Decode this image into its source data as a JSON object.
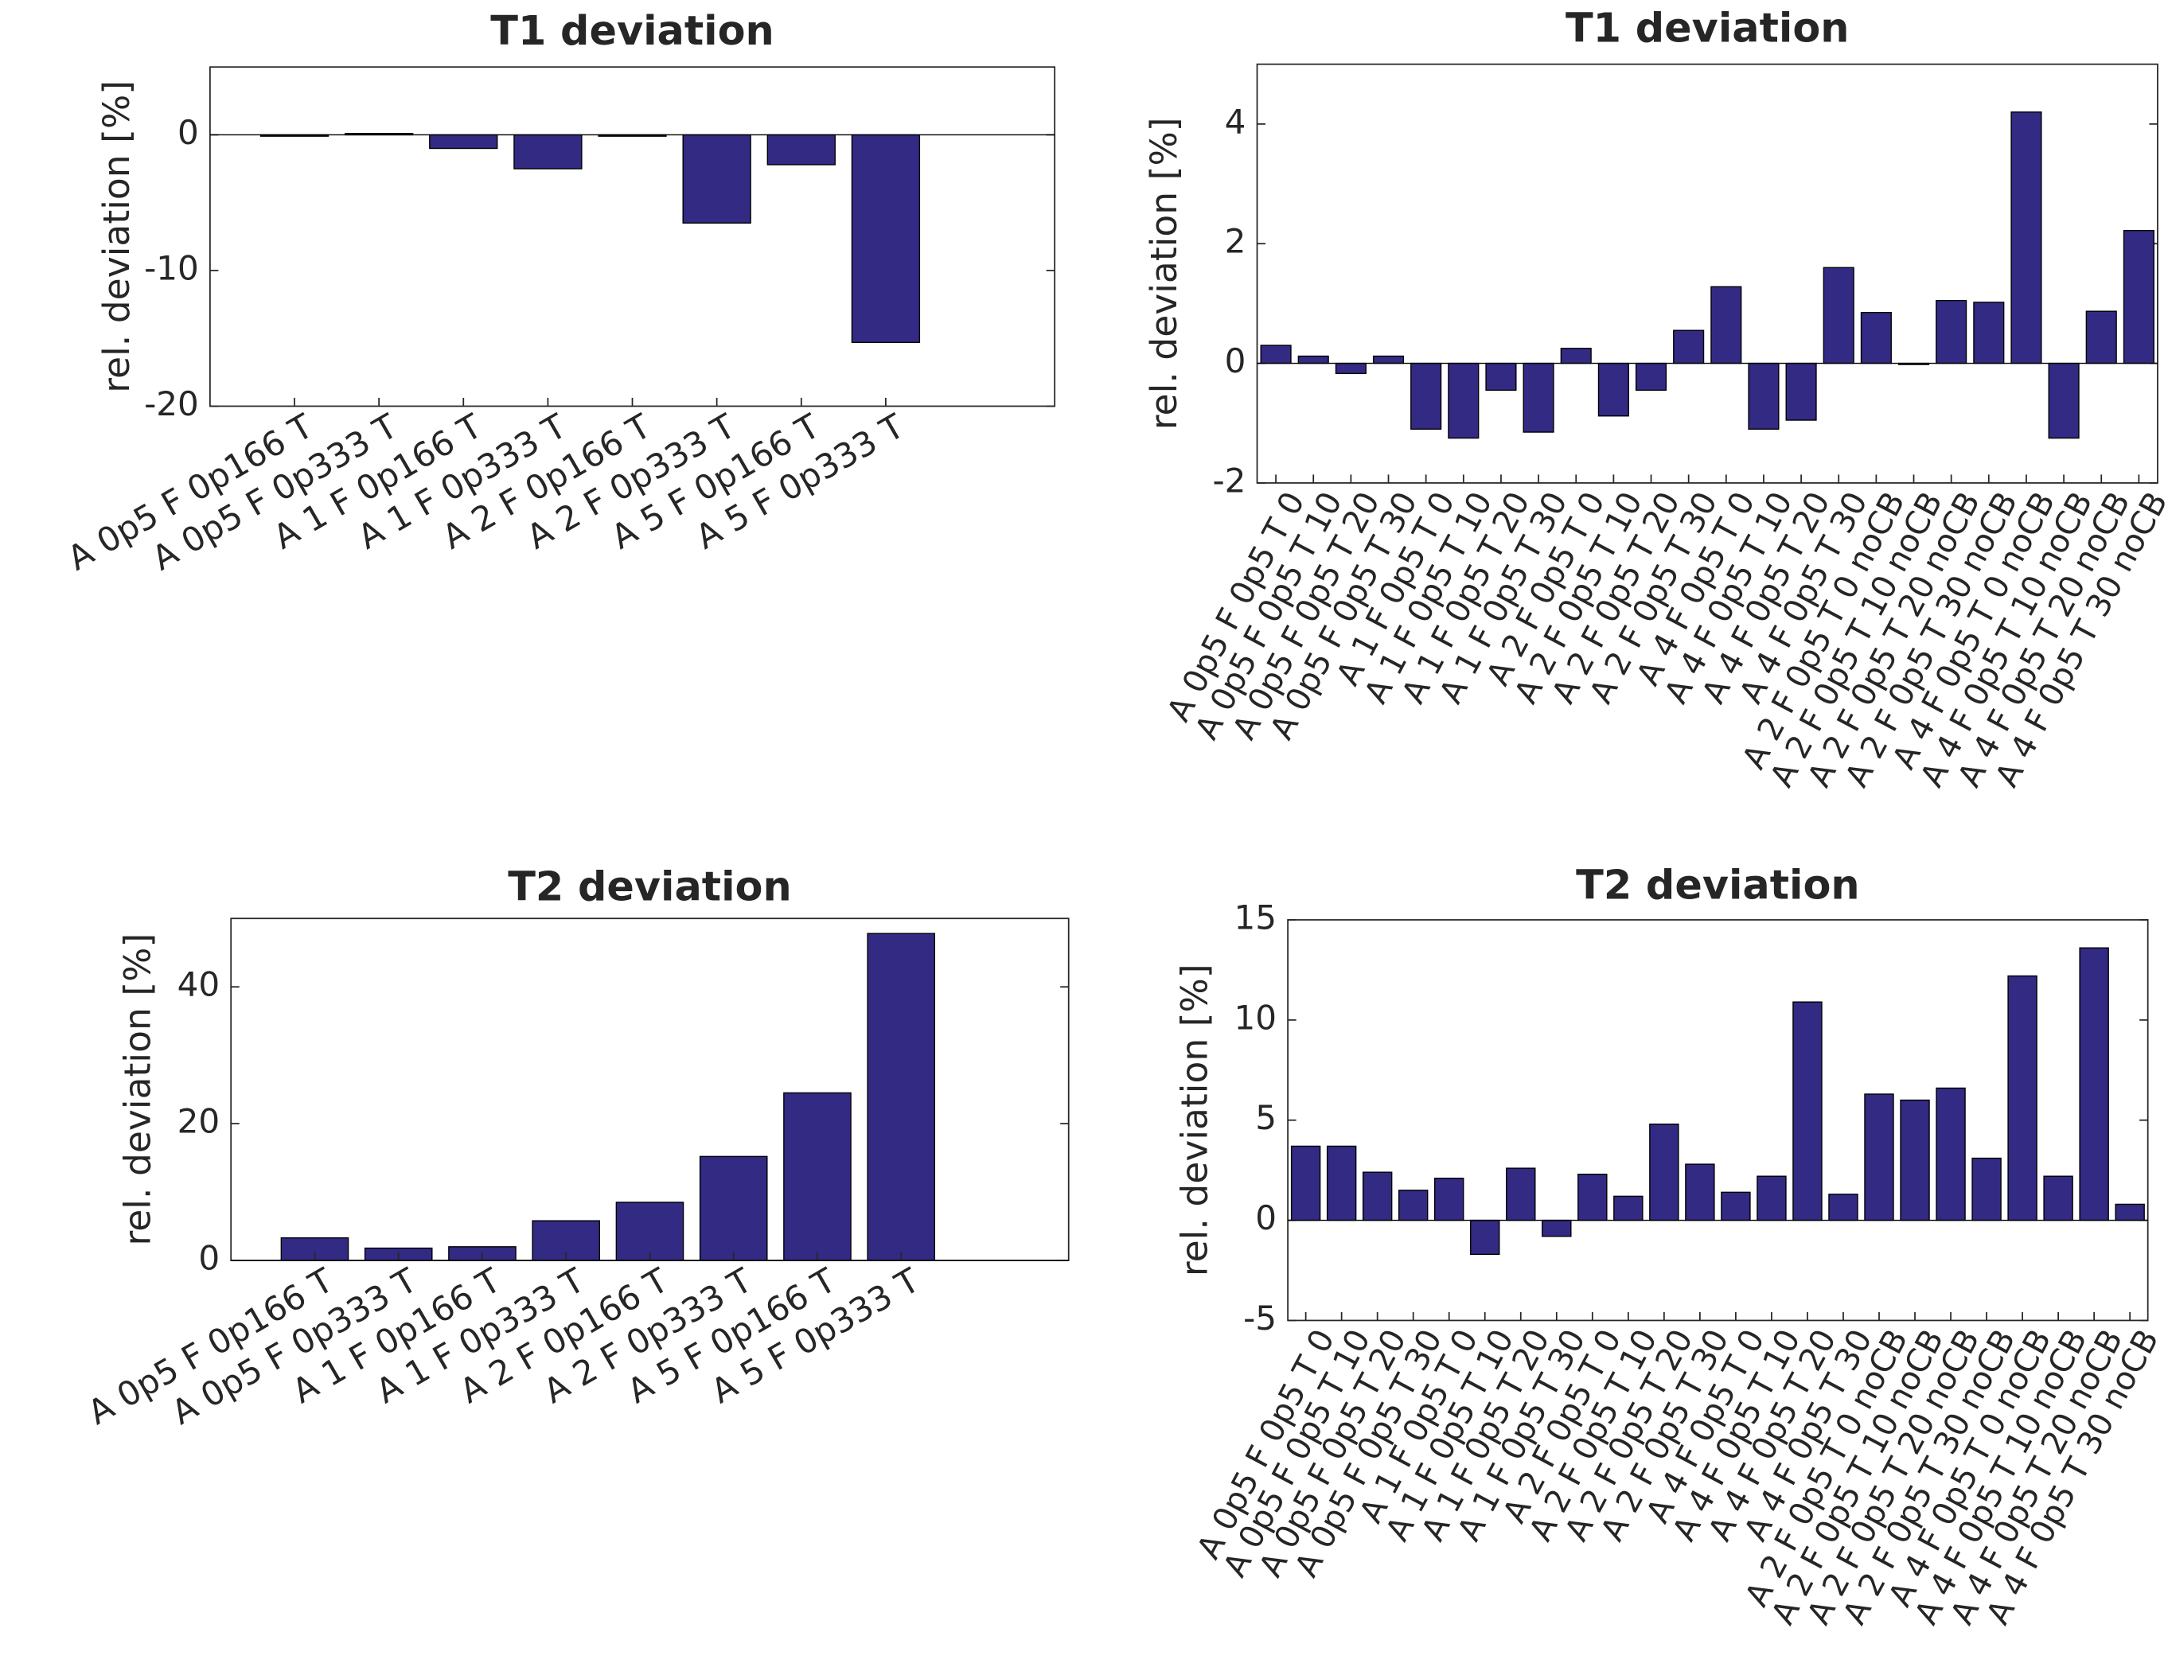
{
  "chart_data": [
    {
      "type": "bar",
      "title": "T1 deviation",
      "y_label": "rel. deviation [%]",
      "categories": [
        "A 0p5 F 0p166 T",
        "A 0p5 F 0p333 T",
        "A 1 F 0p166 T",
        "A 1 F 0p333 T",
        "A 2 F 0p166 T",
        "A 2 F 0p333 T",
        "A 5 F 0p166 T",
        "A 5 F 0p333 T"
      ],
      "values": [
        -0.1,
        0.1,
        -1.0,
        -2.5,
        -0.1,
        -6.5,
        -2.2,
        -15.3
      ],
      "color": "#332a84",
      "xlim": [
        0,
        10
      ],
      "ylim": [
        -20,
        5
      ],
      "yticks": [
        -20,
        -10,
        0
      ]
    },
    {
      "type": "bar",
      "title": "T1 deviation",
      "y_label": "rel. deviation [%]",
      "categories": [
        "A 0p5 F 0p5 T 0",
        "A 0p5 F 0p5 T 10",
        "A 0p5 F 0p5 T 20",
        "A 0p5 F 0p5 T 30",
        "A 1 F 0p5 T 0",
        "A 1 F 0p5 T 10",
        "A 1 F 0p5 T 20",
        "A 1 F 0p5 T 30",
        "A 2 F 0p5 T 0",
        "A 2 F 0p5 T 10",
        "A 2 F 0p5 T 20",
        "A 2 F 0p5 T 30",
        "A 4 F 0p5 T 0",
        "A 4 F 0p5 T 10",
        "A 4 F 0p5 T 20",
        "A 4 F 0p5 T 30",
        "A 2 F 0p5 T 0 noCB",
        "A 2 F 0p5 T 10 noCB",
        "A 2 F 0p5 T 20 noCB",
        "A 2 F 0p5 T 30 noCB",
        "A 4 F 0p5 T 0 noCB",
        "A 4 F 0p5 T 10 noCB",
        "A 4 F 0p5 T 20 noCB",
        "A 4 F 0p5 T 30 noCB"
      ],
      "values": [
        0.3,
        0.12,
        -0.17,
        0.12,
        -1.1,
        -1.25,
        -0.45,
        -1.15,
        0.25,
        -0.88,
        -0.45,
        0.55,
        1.28,
        -1.1,
        -0.95,
        1.6,
        0.85,
        -0.02,
        1.05,
        1.02,
        4.2,
        -1.25,
        0.87,
        2.22
      ],
      "color": "#332a84",
      "xlim": [
        0.5,
        24.5
      ],
      "ylim": [
        -2,
        5
      ],
      "yticks": [
        -2,
        0,
        2,
        4
      ]
    },
    {
      "type": "bar",
      "title": "T2 deviation",
      "y_label": "rel. deviation [%]",
      "categories": [
        "A 0p5 F 0p166 T",
        "A 0p5 F 0p333 T",
        "A 1 F 0p166 T",
        "A 1 F 0p333 T",
        "A 2 F 0p166 T",
        "A 2 F 0p333 T",
        "A 5 F 0p166 T",
        "A 5 F 0p333 T"
      ],
      "values": [
        3.3,
        1.8,
        2.0,
        5.8,
        8.5,
        15.2,
        24.5,
        47.8
      ],
      "color": "#332a84",
      "xlim": [
        0,
        10
      ],
      "ylim": [
        0,
        50
      ],
      "yticks": [
        0,
        20,
        40
      ]
    },
    {
      "type": "bar",
      "title": "T2 deviation",
      "y_label": "rel. deviation [%]",
      "categories": [
        "A 0p5 F 0p5 T 0",
        "A 0p5 F 0p5 T 10",
        "A 0p5 F 0p5 T 20",
        "A 0p5 F 0p5 T 30",
        "A 1 F 0p5 T 0",
        "A 1 F 0p5 T 10",
        "A 1 F 0p5 T 20",
        "A 1 F 0p5 T 30",
        "A 2 F 0p5 T 0",
        "A 2 F 0p5 T 10",
        "A 2 F 0p5 T 20",
        "A 2 F 0p5 T 30",
        "A 4 F 0p5 T 0",
        "A 4 F 0p5 T 10",
        "A 4 F 0p5 T 20",
        "A 4 F 0p5 T 30",
        "A 2 F 0p5 T 0 noCB",
        "A 2 F 0p5 T 10 noCB",
        "A 2 F 0p5 T 20 noCB",
        "A 2 F 0p5 T 30 noCB",
        "A 4 F 0p5 T 0 noCB",
        "A 4 F 0p5 T 10 noCB",
        "A 4 F 0p5 T 20 noCB",
        "A 4 F 0p5 T 30 noCB"
      ],
      "values": [
        3.7,
        3.7,
        2.4,
        1.5,
        2.1,
        -1.7,
        2.6,
        -0.8,
        2.3,
        1.2,
        4.8,
        2.8,
        1.4,
        2.2,
        10.9,
        1.3,
        6.3,
        6.0,
        6.6,
        3.1,
        12.2,
        2.2,
        13.6,
        0.8
      ],
      "color": "#332a84",
      "xlim": [
        0.5,
        24.5
      ],
      "ylim": [
        -5,
        15
      ],
      "yticks": [
        -5,
        0,
        5,
        10,
        15
      ]
    }
  ]
}
